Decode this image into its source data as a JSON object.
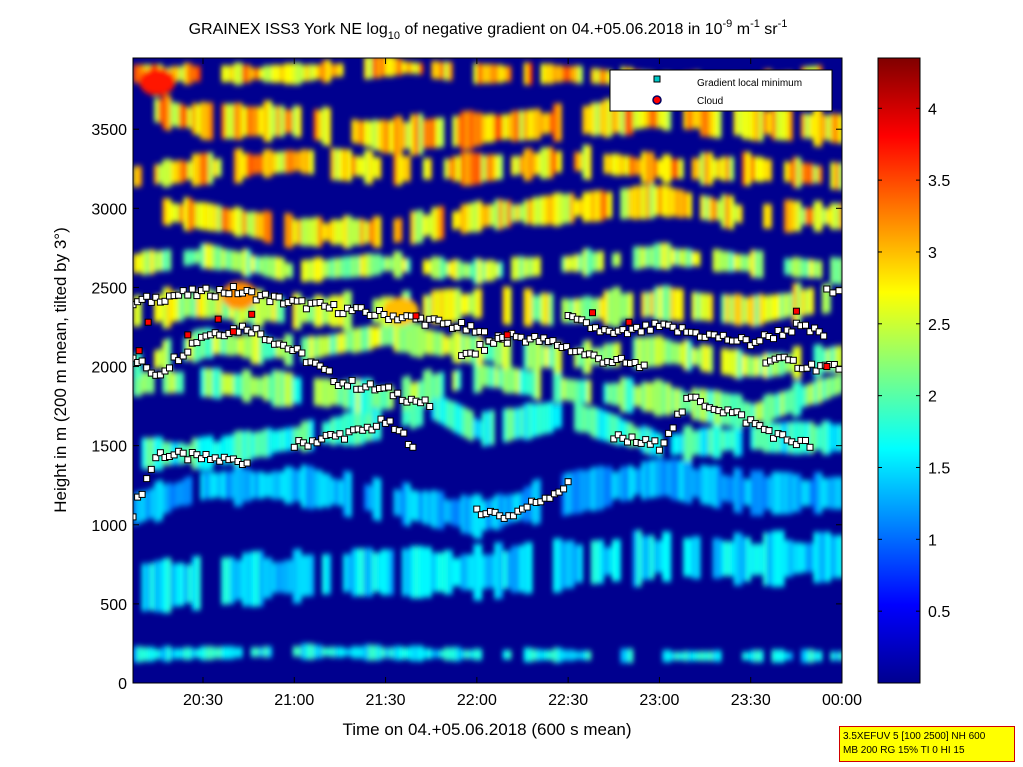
{
  "chart_data": {
    "type": "heatmap",
    "title": {
      "main": "GRAINEX ISS3 York NE log",
      "sub_10": "10",
      "mid": " of negative gradient on 04.+05.06.2018 in 10",
      "sup_exp1": "-9",
      "m": " m",
      "sup_exp2": "-1",
      "sr": " sr",
      "sup_exp3": "-1"
    },
    "xlabel": "Time on 04.+05.06.2018 (600 s mean)",
    "ylabel": "Height in m (200 m mean, tilted by 3°)",
    "x_range": [
      "20:07",
      "00:00"
    ],
    "x_ticks": [
      "20:30",
      "21:00",
      "21:30",
      "22:00",
      "22:30",
      "23:00",
      "23:30",
      "00:00"
    ],
    "ylim": [
      0,
      3950
    ],
    "y_ticks": [
      "0",
      "500",
      "1000",
      "1500",
      "2000",
      "2500",
      "3000",
      "3500"
    ],
    "colorbar": {
      "min": 0,
      "max": 4.35,
      "ticks": [
        "0.5",
        "1",
        "1.5",
        "2",
        "2.5",
        "3",
        "3.5",
        "4"
      ],
      "colormap": "jet"
    },
    "legend": {
      "placement": "top-right",
      "entries": [
        {
          "label": "Gradient local minimum",
          "marker": "square",
          "color": "#00c8c8"
        },
        {
          "label": "Cloud",
          "marker": "circle",
          "color": "#ff0000"
        }
      ]
    },
    "layers": [
      {
        "name": "surface",
        "points": [
          [
            "20:07",
            180
          ],
          [
            "21:00",
            200
          ],
          [
            "22:00",
            180
          ],
          [
            "23:00",
            170
          ],
          [
            "00:00",
            170
          ]
        ],
        "value": 1.6,
        "thickness": 70
      },
      {
        "name": "low",
        "points": [
          [
            "20:07",
            600
          ],
          [
            "20:40",
            650
          ],
          [
            "21:20",
            700
          ],
          [
            "22:00",
            700
          ],
          [
            "22:30",
            750
          ],
          [
            "23:00",
            800
          ],
          [
            "23:30",
            780
          ],
          [
            "00:00",
            800
          ]
        ],
        "value": 1.5,
        "thickness": 250
      },
      {
        "name": "lower-mid",
        "points": [
          [
            "20:07",
            1100
          ],
          [
            "20:30",
            1250
          ],
          [
            "21:00",
            1250
          ],
          [
            "21:30",
            1150
          ],
          [
            "22:00",
            1050
          ],
          [
            "22:30",
            1200
          ],
          [
            "23:00",
            1300
          ],
          [
            "23:30",
            1200
          ],
          [
            "00:00",
            1200
          ]
        ],
        "value": 1.3,
        "thickness": 200
      },
      {
        "name": "l1500",
        "points": [
          [
            "20:07",
            1450
          ],
          [
            "20:30",
            1450
          ],
          [
            "21:00",
            1550
          ],
          [
            "21:30",
            1650
          ],
          [
            "21:45",
            1750
          ],
          [
            "22:00",
            1600
          ],
          [
            "22:30",
            1700
          ],
          [
            "23:00",
            1500
          ],
          [
            "23:30",
            1550
          ],
          [
            "00:00",
            1550
          ]
        ],
        "value": 1.8,
        "thickness": 160
      },
      {
        "name": "l1850",
        "points": [
          [
            "20:07",
            1900
          ],
          [
            "20:30",
            1900
          ],
          [
            "21:00",
            1850
          ],
          [
            "21:30",
            1800
          ],
          [
            "22:00",
            1950
          ],
          [
            "22:30",
            1850
          ],
          [
            "23:00",
            1800
          ],
          [
            "23:30",
            1700
          ],
          [
            "00:00",
            1900
          ]
        ],
        "value": 2.1,
        "thickness": 160
      },
      {
        "name": "l2000",
        "points": [
          [
            "20:07",
            2000
          ],
          [
            "20:30",
            2150
          ],
          [
            "21:00",
            2100
          ],
          [
            "21:30",
            2200
          ],
          [
            "22:00",
            2100
          ],
          [
            "22:30",
            2050
          ],
          [
            "23:00",
            2100
          ],
          [
            "23:30",
            2000
          ],
          [
            "00:00",
            2050
          ]
        ],
        "value": 2.3,
        "thickness": 150
      },
      {
        "name": "l2300",
        "points": [
          [
            "20:07",
            2350
          ],
          [
            "20:30",
            2400
          ],
          [
            "21:00",
            2350
          ],
          [
            "21:30",
            2350
          ],
          [
            "22:00",
            2400
          ],
          [
            "22:30",
            2350
          ],
          [
            "23:00",
            2400
          ],
          [
            "23:30",
            2350
          ],
          [
            "00:00",
            2450
          ]
        ],
        "value": 2.5,
        "thickness": 180
      },
      {
        "name": "l2600",
        "points": [
          [
            "20:07",
            2650
          ],
          [
            "20:30",
            2700
          ],
          [
            "21:00",
            2600
          ],
          [
            "21:30",
            2650
          ],
          [
            "22:00",
            2600
          ],
          [
            "22:30",
            2650
          ],
          [
            "23:00",
            2700
          ],
          [
            "23:30",
            2650
          ],
          [
            "00:00",
            2600
          ]
        ],
        "value": 2.35,
        "thickness": 120
      },
      {
        "name": "l2900",
        "points": [
          [
            "20:07",
            3000
          ],
          [
            "20:30",
            2950
          ],
          [
            "21:00",
            2850
          ],
          [
            "21:30",
            2850
          ],
          [
            "22:00",
            2950
          ],
          [
            "22:30",
            3000
          ],
          [
            "23:00",
            3050
          ],
          [
            "23:30",
            2950
          ],
          [
            "00:00",
            2950
          ]
        ],
        "value": 2.8,
        "thickness": 150
      },
      {
        "name": "l3250",
        "points": [
          [
            "20:07",
            3200
          ],
          [
            "20:30",
            3250
          ],
          [
            "21:00",
            3300
          ],
          [
            "21:30",
            3250
          ],
          [
            "22:00",
            3250
          ],
          [
            "22:30",
            3300
          ],
          [
            "23:00",
            3250
          ],
          [
            "23:30",
            3250
          ],
          [
            "00:00",
            3200
          ]
        ],
        "value": 2.9,
        "thickness": 150
      },
      {
        "name": "l3600",
        "points": [
          [
            "20:07",
            3650
          ],
          [
            "20:30",
            3550
          ],
          [
            "21:00",
            3550
          ],
          [
            "21:30",
            3450
          ],
          [
            "22:00",
            3500
          ],
          [
            "22:30",
            3550
          ],
          [
            "23:00",
            3600
          ],
          [
            "23:30",
            3550
          ],
          [
            "00:00",
            3500
          ]
        ],
        "value": 2.9,
        "thickness": 180
      },
      {
        "name": "l3850",
        "points": [
          [
            "20:07",
            3850
          ],
          [
            "20:30",
            3850
          ],
          [
            "21:00",
            3850
          ],
          [
            "21:30",
            3900
          ],
          [
            "22:00",
            3850
          ],
          [
            "22:30",
            3850
          ],
          [
            "23:00",
            3800
          ],
          [
            "23:30",
            3800
          ],
          [
            "00:00",
            3850
          ]
        ],
        "value": 3.0,
        "thickness": 100
      }
    ],
    "hotspots": [
      {
        "t": "20:15",
        "h": 3800,
        "value": 3.7
      },
      {
        "t": "20:42",
        "h": 2450,
        "value": 3.2
      },
      {
        "t": "21:35",
        "h": 2350,
        "value": 3.0
      }
    ],
    "minima_tracks": [
      {
        "points": [
          [
            "20:07",
            1080
          ],
          [
            "20:15",
            1450
          ],
          [
            "20:30",
            1420
          ],
          [
            "20:45",
            1400
          ]
        ],
        "step_min": 1.5
      },
      {
        "points": [
          [
            "20:07",
            2050
          ],
          [
            "20:15",
            1950
          ],
          [
            "20:30",
            2200
          ],
          [
            "20:45",
            2250
          ],
          [
            "21:00",
            2100
          ],
          [
            "21:15",
            1900
          ],
          [
            "21:30",
            1850
          ],
          [
            "21:45",
            1750
          ]
        ],
        "step_min": 1.5
      },
      {
        "points": [
          [
            "20:07",
            2400
          ],
          [
            "20:20",
            2450
          ],
          [
            "20:40",
            2480
          ],
          [
            "21:00",
            2400
          ],
          [
            "21:20",
            2350
          ],
          [
            "21:40",
            2300
          ],
          [
            "21:55",
            2250
          ],
          [
            "22:10",
            2150
          ]
        ],
        "step_min": 1.5
      },
      {
        "points": [
          [
            "21:00",
            1500
          ],
          [
            "21:10",
            1550
          ],
          [
            "21:20",
            1580
          ],
          [
            "21:30",
            1650
          ],
          [
            "21:40",
            1500
          ]
        ],
        "step_min": 1.5
      },
      {
        "points": [
          [
            "21:55",
            2050
          ],
          [
            "22:10",
            2200
          ],
          [
            "22:25",
            2150
          ],
          [
            "22:40",
            2050
          ],
          [
            "22:55",
            2000
          ]
        ],
        "step_min": 1.5
      },
      {
        "points": [
          [
            "22:00",
            1100
          ],
          [
            "22:10",
            1050
          ],
          [
            "22:20",
            1150
          ],
          [
            "22:30",
            1250
          ]
        ],
        "step_min": 1.5
      },
      {
        "points": [
          [
            "22:30",
            2300
          ],
          [
            "22:45",
            2200
          ],
          [
            "23:00",
            2250
          ],
          [
            "23:15",
            2200
          ],
          [
            "23:30",
            2150
          ],
          [
            "23:45",
            2250
          ],
          [
            "23:55",
            2200
          ]
        ],
        "step_min": 1.5
      },
      {
        "points": [
          [
            "22:45",
            1550
          ],
          [
            "23:00",
            1500
          ],
          [
            "23:10",
            1800
          ],
          [
            "23:25",
            1700
          ],
          [
            "23:40",
            1550
          ],
          [
            "23:50",
            1500
          ]
        ],
        "step_min": 1.5
      },
      {
        "points": [
          [
            "23:35",
            2050
          ],
          [
            "23:50",
            2000
          ],
          [
            "00:00",
            2000
          ]
        ],
        "step_min": 1.5
      },
      {
        "points": [
          [
            "23:55",
            2480
          ],
          [
            "00:00",
            2480
          ]
        ],
        "step_min": 2
      }
    ],
    "clouds": [
      [
        "20:09",
        2100
      ],
      [
        "20:12",
        2280
      ],
      [
        "20:25",
        2200
      ],
      [
        "20:35",
        2300
      ],
      [
        "20:40",
        2220
      ],
      [
        "20:46",
        2330
      ],
      [
        "21:40",
        2320
      ],
      [
        "22:10",
        2200
      ],
      [
        "22:38",
        2340
      ],
      [
        "22:50",
        2280
      ],
      [
        "23:45",
        2350
      ],
      [
        "23:55",
        2000
      ]
    ]
  },
  "info_box": {
    "line1": "3.5XEFUV 5 [100 2500] NH 600",
    "line2": "MB 200 RG 15% TI 0 HI 15"
  },
  "colors": {
    "background_field": "#00008f",
    "info_box_bg": "#ffff00",
    "info_box_border": "#d00000",
    "minimum_marker": "#00c8c8",
    "cloud_marker": "#ff0000"
  }
}
